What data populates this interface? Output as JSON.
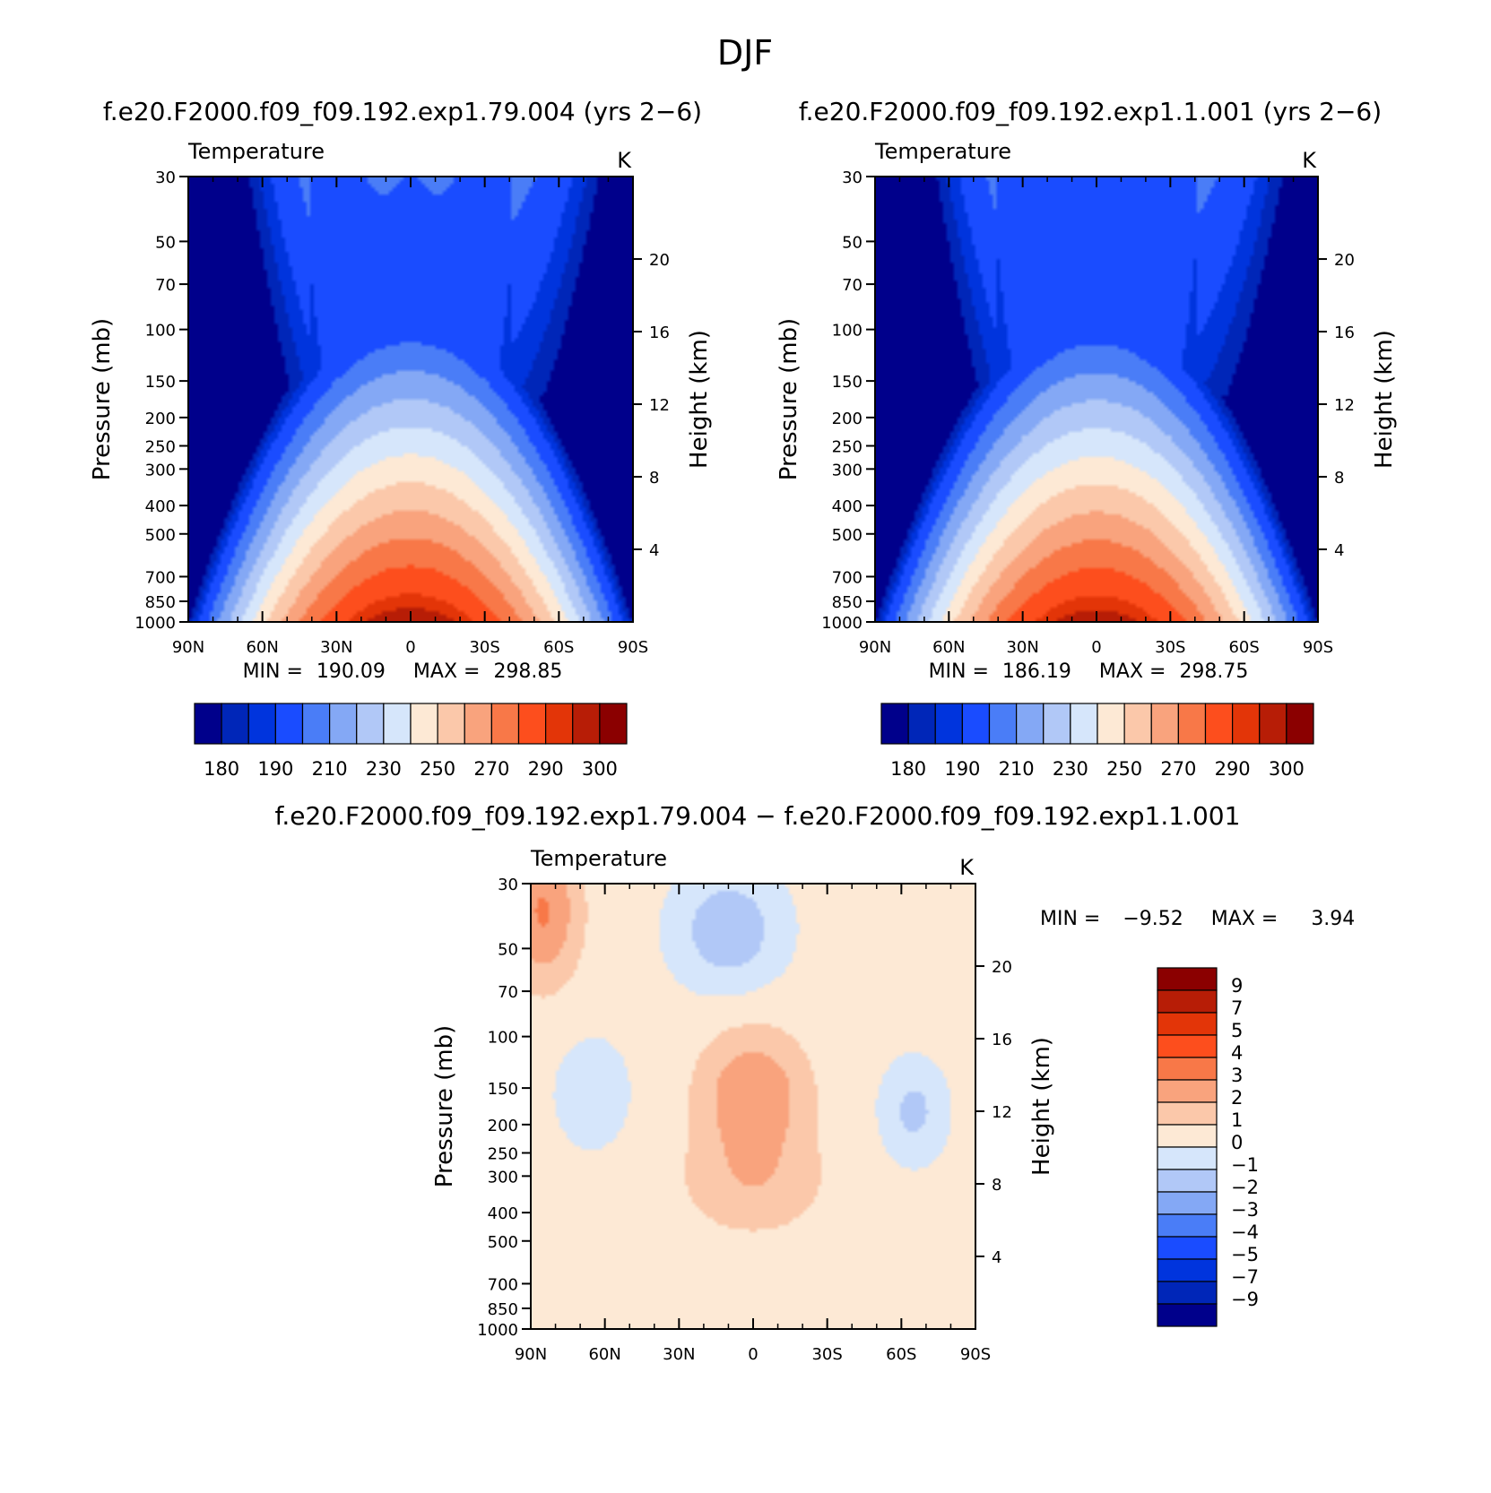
{
  "figure": {
    "title": "DJF",
    "diff_title": "f.e20.F2000.f09_f09.192.exp1.79.004 − f.e20.F2000.f09_f09.192.exp1.1.001"
  },
  "chart_data": [
    {
      "type": "heatmap",
      "title": "f.e20.F2000.f09_f09.192.exp1.79.004 (yrs 2−6)",
      "left_string": "Temperature",
      "right_string": "K",
      "ylabel": "Pressure (mb)",
      "ylabel_right": "Height (km)",
      "x_ticks": [
        "90N",
        "60N",
        "30N",
        "0",
        "30S",
        "60S",
        "90S"
      ],
      "y_ticks": [
        30,
        50,
        70,
        100,
        150,
        200,
        250,
        300,
        400,
        500,
        700,
        850,
        1000
      ],
      "height_ticks": [
        4,
        8,
        12,
        16,
        20
      ],
      "ylim": [
        1000,
        30
      ],
      "y_scale": "log",
      "min_label": "MIN =",
      "min": "190.09",
      "max_label": "MAX =",
      "max": "298.85",
      "colorbar": {
        "orientation": "horizontal",
        "colors": [
          "#00008b",
          "#0026b8",
          "#0034dd",
          "#1a4cff",
          "#4a7df7",
          "#84a8f5",
          "#b1c8f7",
          "#d6e6fb",
          "#fde9d5",
          "#fbc8aa",
          "#f9a37d",
          "#f87848",
          "#fd4e1d",
          "#e33508",
          "#b71d06",
          "#8b0000"
        ],
        "labels": [
          "180",
          "190",
          "210",
          "230",
          "250",
          "270",
          "290",
          "300"
        ]
      }
    },
    {
      "type": "heatmap",
      "title": "f.e20.F2000.f09_f09.192.exp1.1.001 (yrs 2−6)",
      "left_string": "Temperature",
      "right_string": "K",
      "ylabel": "Pressure (mb)",
      "ylabel_right": "Height (km)",
      "x_ticks": [
        "90N",
        "60N",
        "30N",
        "0",
        "30S",
        "60S",
        "90S"
      ],
      "y_ticks": [
        30,
        50,
        70,
        100,
        150,
        200,
        250,
        300,
        400,
        500,
        700,
        850,
        1000
      ],
      "height_ticks": [
        4,
        8,
        12,
        16,
        20
      ],
      "ylim": [
        1000,
        30
      ],
      "y_scale": "log",
      "min_label": "MIN =",
      "min": "186.19",
      "max_label": "MAX =",
      "max": "298.75",
      "colorbar": {
        "orientation": "horizontal",
        "colors": [
          "#00008b",
          "#0026b8",
          "#0034dd",
          "#1a4cff",
          "#4a7df7",
          "#84a8f5",
          "#b1c8f7",
          "#d6e6fb",
          "#fde9d5",
          "#fbc8aa",
          "#f9a37d",
          "#f87848",
          "#fd4e1d",
          "#e33508",
          "#b71d06",
          "#8b0000"
        ],
        "labels": [
          "180",
          "190",
          "210",
          "230",
          "250",
          "270",
          "290",
          "300"
        ]
      }
    },
    {
      "type": "heatmap",
      "left_string": "Temperature",
      "right_string": "K",
      "ylabel": "Pressure (mb)",
      "ylabel_right": "Height (km)",
      "x_ticks": [
        "90N",
        "60N",
        "30N",
        "0",
        "30S",
        "60S",
        "90S"
      ],
      "y_ticks": [
        30,
        50,
        70,
        100,
        150,
        200,
        250,
        300,
        400,
        500,
        700,
        850,
        1000
      ],
      "height_ticks": [
        4,
        8,
        12,
        16,
        20
      ],
      "ylim": [
        1000,
        30
      ],
      "y_scale": "log",
      "min_label": "MIN =",
      "min": "−9.52",
      "max_label": "MAX =",
      "max": "3.94",
      "colorbar": {
        "orientation": "vertical",
        "colors": [
          "#8b0000",
          "#b71d06",
          "#e33508",
          "#fd4e1d",
          "#f87848",
          "#f9a37d",
          "#fbc8aa",
          "#fde9d5",
          "#d6e6fb",
          "#b1c8f7",
          "#84a8f5",
          "#4a7df7",
          "#1a4cff",
          "#0034dd",
          "#0026b8",
          "#00008b"
        ],
        "labels": [
          "9",
          "7",
          "5",
          "4",
          "3",
          "2",
          "1",
          "0",
          "−1",
          "−2",
          "−3",
          "−4",
          "−5",
          "−7",
          "−9"
        ]
      }
    }
  ]
}
